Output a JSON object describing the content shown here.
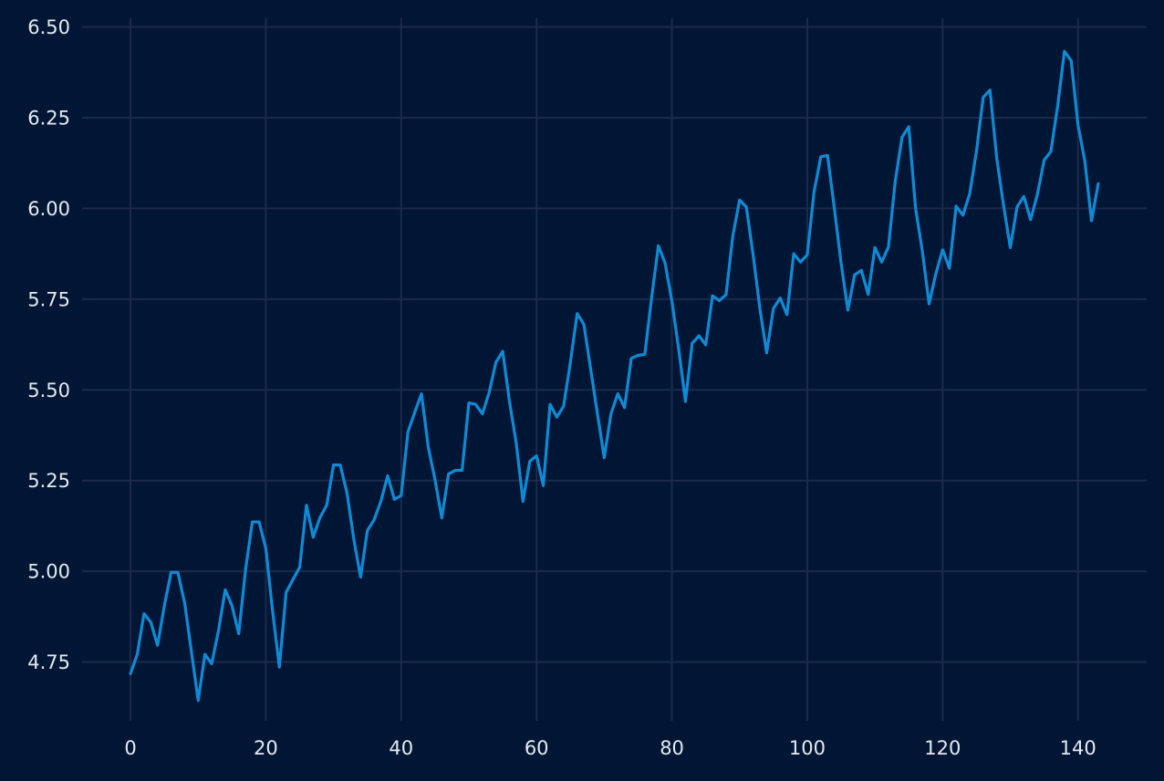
{
  "chart_data": {
    "type": "line",
    "title": "",
    "xlabel": "",
    "ylabel": "",
    "xlim": [
      -7.15,
      150.15
    ],
    "ylim": [
      4.588,
      6.524
    ],
    "grid": true,
    "xticks": [
      0,
      20,
      40,
      60,
      80,
      100,
      120,
      140
    ],
    "xtick_labels": [
      "0",
      "20",
      "40",
      "60",
      "80",
      "100",
      "120",
      "140"
    ],
    "yticks": [
      4.75,
      5.0,
      5.25,
      5.5,
      5.75,
      6.0,
      6.25,
      6.5
    ],
    "ytick_labels": [
      "4.75",
      "5.00",
      "5.25",
      "5.50",
      "5.75",
      "6.00",
      "6.25",
      "6.50"
    ],
    "series": [
      {
        "x": [
          0,
          1,
          2,
          3,
          4,
          5,
          6,
          7,
          8,
          9,
          10,
          11,
          12,
          13,
          14,
          15,
          16,
          17,
          18,
          19,
          20,
          21,
          22,
          23,
          24,
          25,
          26,
          27,
          28,
          29,
          30,
          31,
          32,
          33,
          34,
          35,
          36,
          37,
          38,
          39,
          40,
          41,
          42,
          43,
          44,
          45,
          46,
          47,
          48,
          49,
          50,
          51,
          52,
          53,
          54,
          55,
          56,
          57,
          58,
          59,
          60,
          61,
          62,
          63,
          64,
          65,
          66,
          67,
          68,
          69,
          70,
          71,
          72,
          73,
          74,
          75,
          76,
          77,
          78,
          79,
          80,
          81,
          82,
          83,
          84,
          85,
          86,
          87,
          88,
          89,
          90,
          91,
          92,
          93,
          94,
          95,
          96,
          97,
          98,
          99,
          100,
          101,
          102,
          103,
          104,
          105,
          106,
          107,
          108,
          109,
          110,
          111,
          112,
          113,
          114,
          115,
          116,
          117,
          118,
          119,
          120,
          121,
          122,
          123,
          124,
          125,
          126,
          127,
          128,
          129,
          130,
          131,
          132,
          133,
          134,
          135,
          136,
          137,
          138,
          139,
          140,
          141,
          142,
          143
        ],
        "values": [
          4.718,
          4.771,
          4.883,
          4.86,
          4.796,
          4.905,
          4.997,
          4.997,
          4.913,
          4.779,
          4.644,
          4.771,
          4.745,
          4.836,
          4.949,
          4.905,
          4.828,
          5.004,
          5.136,
          5.136,
          5.063,
          4.89,
          4.736,
          4.942,
          4.977,
          5.011,
          5.182,
          5.094,
          5.148,
          5.182,
          5.293,
          5.293,
          5.215,
          5.088,
          4.984,
          5.112,
          5.142,
          5.193,
          5.263,
          5.198,
          5.209,
          5.384,
          5.438,
          5.489,
          5.342,
          5.252,
          5.147,
          5.268,
          5.278,
          5.278,
          5.464,
          5.46,
          5.434,
          5.493,
          5.576,
          5.606,
          5.468,
          5.353,
          5.193,
          5.303,
          5.318,
          5.236,
          5.46,
          5.425,
          5.455,
          5.576,
          5.71,
          5.68,
          5.557,
          5.434,
          5.313,
          5.434,
          5.489,
          5.451,
          5.587,
          5.595,
          5.598,
          5.753,
          5.897,
          5.849,
          5.744,
          5.613,
          5.468,
          5.628,
          5.649,
          5.624,
          5.759,
          5.746,
          5.762,
          5.924,
          6.023,
          6.004,
          5.872,
          5.724,
          5.602,
          5.724,
          5.753,
          5.707,
          5.875,
          5.852,
          5.872,
          6.045,
          6.142,
          6.146,
          6.001,
          5.849,
          5.72,
          5.817,
          5.829,
          5.763,
          5.892,
          5.852,
          5.894,
          6.075,
          6.196,
          6.225,
          6.001,
          5.883,
          5.737,
          5.82,
          5.886,
          5.835,
          6.006,
          5.981,
          6.04,
          6.157,
          6.306,
          6.326,
          6.138,
          6.009,
          5.892,
          6.004,
          6.033,
          5.969,
          6.038,
          6.133,
          6.157,
          6.282,
          6.433,
          6.407,
          6.23,
          6.133,
          5.966,
          6.068
        ]
      }
    ]
  },
  "colors": {
    "background": "#001634",
    "grid": "#1e2a4a",
    "line": "#0f8bd6",
    "tick_text": "#e6e9ef"
  }
}
